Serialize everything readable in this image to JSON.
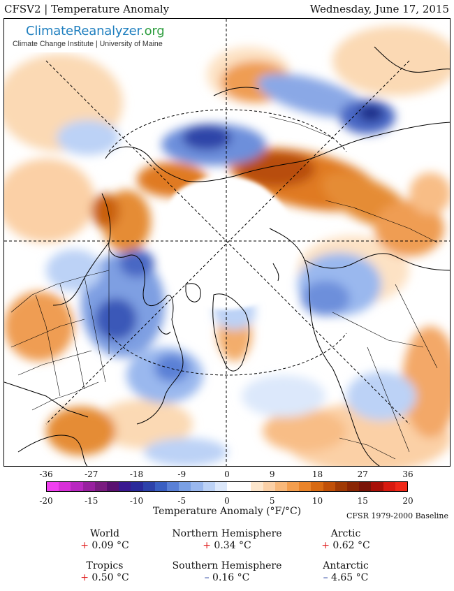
{
  "header": {
    "title": "CFSV2 | Temperature Anomaly",
    "date": "Wednesday, June 17, 2015"
  },
  "logo": {
    "name_part1": "ClimateReanalyzer",
    "name_part2": ".org",
    "subtitle": "Climate Change Institute | University of Maine"
  },
  "colorbar": {
    "ticks_f": [
      "-36",
      "-27",
      "-18",
      "-9",
      "0",
      "9",
      "18",
      "27",
      "36"
    ],
    "ticks_c": [
      "-20",
      "-15",
      "-10",
      "-5",
      "0",
      "5",
      "10",
      "15",
      "20"
    ],
    "label": "Temperature Anomaly (°F/°C)",
    "baseline": "CFSR 1979-2000 Baseline",
    "colors": [
      "#f040f0",
      "#d830d8",
      "#b828c0",
      "#98209f",
      "#7a1c80",
      "#5a1070",
      "#3a1890",
      "#2a2a9a",
      "#2d42aa",
      "#3a5fc2",
      "#5a80d6",
      "#7aa0e4",
      "#9ab8ee",
      "#bcd2f6",
      "#dce8fb",
      "#ffffff",
      "#ffffff",
      "#fde6cc",
      "#fbd0a6",
      "#f8b87a",
      "#f39e4e",
      "#ea842a",
      "#d86a12",
      "#c05008",
      "#a03a04",
      "#8a2604",
      "#7a1408",
      "#a81008",
      "#d81a10",
      "#f02818"
    ]
  },
  "stats": [
    {
      "name": "World",
      "sign": "+",
      "value": "0.09 °C"
    },
    {
      "name": "Northern Hemisphere",
      "sign": "+",
      "value": "0.34 °C"
    },
    {
      "name": "Arctic",
      "sign": "+",
      "value": "0.62 °C"
    },
    {
      "name": "Tropics",
      "sign": "+",
      "value": "0.50 °C"
    },
    {
      "name": "Southern Hemisphere",
      "sign": "–",
      "value": "0.16 °C"
    },
    {
      "name": "Antarctic",
      "sign": "–",
      "value": "4.65 °C"
    }
  ]
}
